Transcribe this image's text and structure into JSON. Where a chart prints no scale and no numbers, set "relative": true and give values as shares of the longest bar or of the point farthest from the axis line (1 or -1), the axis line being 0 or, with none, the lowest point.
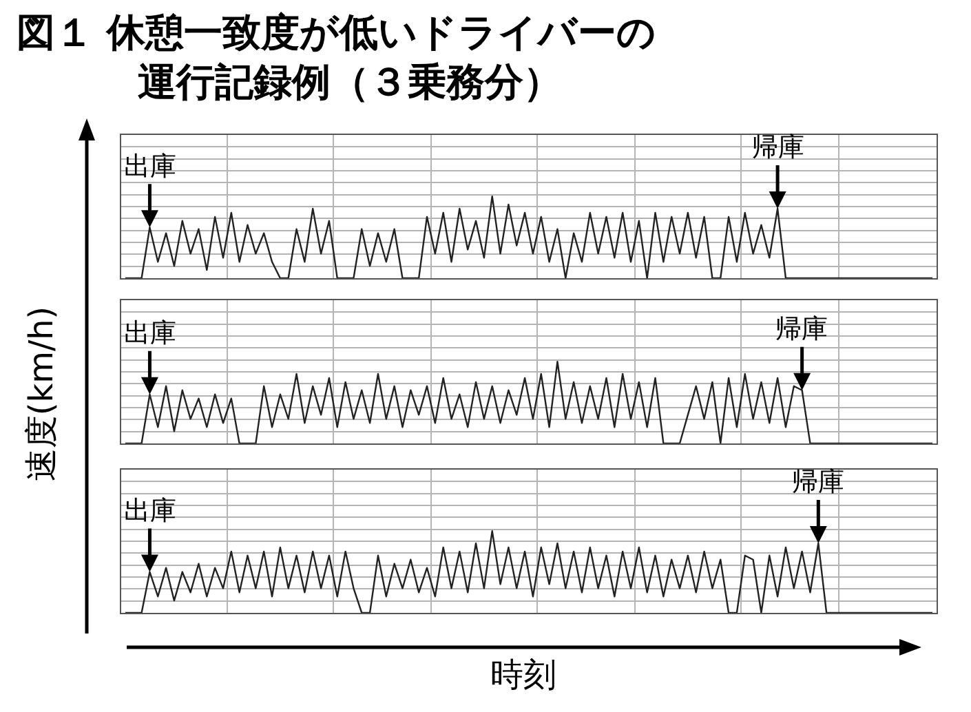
{
  "chart_data": [
    {
      "type": "line",
      "title": "図１ 休憩一致度が低いドライバーの運行記録例（３乗務分）",
      "relative": true,
      "grid": true,
      "color": "#222222",
      "annotations": [
        "出庫",
        "帰庫"
      ],
      "categories": [
        null,
        null,
        null,
        null,
        null,
        null,
        null,
        null,
        null,
        null,
        null,
        null,
        null,
        null,
        null,
        null,
        null,
        null,
        null,
        null,
        null,
        null,
        null,
        null,
        null,
        null,
        null,
        null,
        null,
        null,
        null,
        null,
        null,
        null,
        null,
        null,
        null,
        null,
        null,
        null,
        null,
        null,
        null,
        null,
        null,
        null,
        null,
        null,
        null,
        null,
        null,
        null,
        null,
        null,
        null,
        null,
        null,
        null,
        null,
        null,
        null,
        null,
        null,
        null,
        null,
        null,
        null,
        null,
        null,
        null,
        null,
        null,
        null,
        null,
        null,
        null,
        null,
        null,
        null,
        null,
        null,
        null,
        null,
        null,
        null,
        null,
        null,
        null,
        null,
        null,
        null,
        null,
        null,
        null,
        null,
        null,
        null,
        null,
        null,
        null
      ],
      "values": [
        0,
        0,
        0,
        0.62,
        0.2,
        0.55,
        0.15,
        0.7,
        0.3,
        0.6,
        0.1,
        0.75,
        0.25,
        0.8,
        0.2,
        0.65,
        0.3,
        0.55,
        0.2,
        0,
        0,
        0.6,
        0.2,
        0.85,
        0.3,
        0.7,
        0,
        0,
        0,
        0.6,
        0.15,
        0.55,
        0.2,
        0.6,
        0,
        0,
        0,
        0.75,
        0.3,
        0.8,
        0.2,
        0.85,
        0.35,
        0.7,
        0.25,
        1,
        0.3,
        0.9,
        0.4,
        0.8,
        0.3,
        0.75,
        0.2,
        0.6,
        0,
        0.55,
        0.2,
        0.8,
        0.3,
        0.75,
        0.25,
        0.8,
        0.2,
        0.7,
        0,
        0.8,
        0.2,
        0.75,
        0.3,
        0.8,
        0.25,
        0.75,
        0,
        0,
        0.75,
        0.2,
        0.8,
        0.3,
        0.65,
        0.25,
        0.85,
        0,
        0,
        0,
        0,
        0,
        0,
        0,
        0,
        0,
        0,
        0,
        0,
        0,
        0,
        0,
        0,
        0,
        0,
        0
      ]
    },
    {
      "type": "line",
      "ylabel": "速度(km/h)",
      "relative": true,
      "grid": true,
      "color": "#222222",
      "annotations": [
        "出庫",
        "帰庫"
      ],
      "categories": [
        null,
        null,
        null,
        null,
        null,
        null,
        null,
        null,
        null,
        null,
        null,
        null,
        null,
        null,
        null,
        null,
        null,
        null,
        null,
        null,
        null,
        null,
        null,
        null,
        null,
        null,
        null,
        null,
        null,
        null,
        null,
        null,
        null,
        null,
        null,
        null,
        null,
        null,
        null,
        null,
        null,
        null,
        null,
        null,
        null,
        null,
        null,
        null,
        null,
        null,
        null,
        null,
        null,
        null,
        null,
        null,
        null,
        null,
        null,
        null,
        null,
        null,
        null,
        null,
        null,
        null,
        null,
        null,
        null,
        null,
        null,
        null,
        null,
        null,
        null,
        null,
        null,
        null,
        null,
        null,
        null,
        null,
        null,
        null,
        null,
        null,
        null,
        null,
        null,
        null,
        null,
        null,
        null,
        null,
        null,
        null,
        null,
        null,
        null,
        null
      ],
      "values": [
        0,
        0,
        0,
        0.6,
        0.2,
        0.7,
        0.15,
        0.65,
        0.3,
        0.55,
        0.2,
        0.6,
        0.25,
        0.55,
        0,
        0,
        0,
        0.7,
        0.2,
        0.6,
        0.3,
        0.85,
        0.25,
        0.7,
        0.35,
        0.8,
        0.2,
        0.75,
        0.3,
        0.65,
        0.25,
        0.85,
        0.3,
        0.7,
        0.2,
        0.65,
        0.35,
        0.7,
        0.25,
        0.8,
        0.3,
        0.6,
        0.2,
        0.75,
        0.3,
        0.7,
        0.25,
        0.65,
        0.35,
        0.8,
        0.3,
        0.85,
        0.2,
        1,
        0.3,
        0.75,
        0.25,
        0.7,
        0.3,
        0.8,
        0.2,
        0.85,
        0.3,
        0.75,
        0.2,
        0.8,
        0,
        0,
        0,
        0.35,
        0.7,
        0.3,
        0.75,
        0,
        0.8,
        0.2,
        0.85,
        0.3,
        0.75,
        0.25,
        0.8,
        0.2,
        0.7,
        0.65,
        0,
        0,
        0,
        0,
        0,
        0,
        0,
        0,
        0,
        0,
        0,
        0,
        0,
        0,
        0,
        0
      ]
    },
    {
      "type": "line",
      "xlabel": "時刻",
      "relative": true,
      "grid": true,
      "color": "#222222",
      "annotations": [
        "出庫",
        "帰庫"
      ],
      "categories": [
        null,
        null,
        null,
        null,
        null,
        null,
        null,
        null,
        null,
        null,
        null,
        null,
        null,
        null,
        null,
        null,
        null,
        null,
        null,
        null,
        null,
        null,
        null,
        null,
        null,
        null,
        null,
        null,
        null,
        null,
        null,
        null,
        null,
        null,
        null,
        null,
        null,
        null,
        null,
        null,
        null,
        null,
        null,
        null,
        null,
        null,
        null,
        null,
        null,
        null,
        null,
        null,
        null,
        null,
        null,
        null,
        null,
        null,
        null,
        null,
        null,
        null,
        null,
        null,
        null,
        null,
        null,
        null,
        null,
        null,
        null,
        null,
        null,
        null,
        null,
        null,
        null,
        null,
        null,
        null,
        null,
        null,
        null,
        null,
        null,
        null,
        null,
        null,
        null,
        null,
        null,
        null,
        null,
        null,
        null,
        null,
        null,
        null,
        null,
        null
      ],
      "values": [
        0,
        0,
        0,
        0.5,
        0.2,
        0.55,
        0.15,
        0.5,
        0.25,
        0.6,
        0.2,
        0.55,
        0.3,
        0.75,
        0.25,
        0.7,
        0.3,
        0.75,
        0.2,
        0.8,
        0.3,
        0.7,
        0.25,
        0.75,
        0.3,
        0.7,
        0.2,
        0.75,
        0.3,
        0,
        0,
        0.7,
        0.2,
        0.6,
        0.3,
        0.65,
        0.25,
        0.55,
        0.2,
        0.8,
        0.3,
        0.75,
        0.25,
        0.85,
        0.3,
        1,
        0.35,
        0.8,
        0.3,
        0.75,
        0.2,
        0.8,
        0.35,
        0.85,
        0.3,
        0.75,
        0.25,
        0.8,
        0.3,
        0.7,
        0.2,
        0.75,
        0.3,
        0.8,
        0.25,
        0.7,
        0.2,
        0.65,
        0.3,
        0.7,
        0.25,
        0.75,
        0.3,
        0.65,
        0,
        0,
        0.7,
        0.65,
        0,
        0.7,
        0.2,
        0.8,
        0.3,
        0.75,
        0.25,
        0.85,
        0,
        0,
        0,
        0,
        0,
        0,
        0,
        0,
        0,
        0,
        0,
        0,
        0,
        0
      ]
    }
  ]
}
